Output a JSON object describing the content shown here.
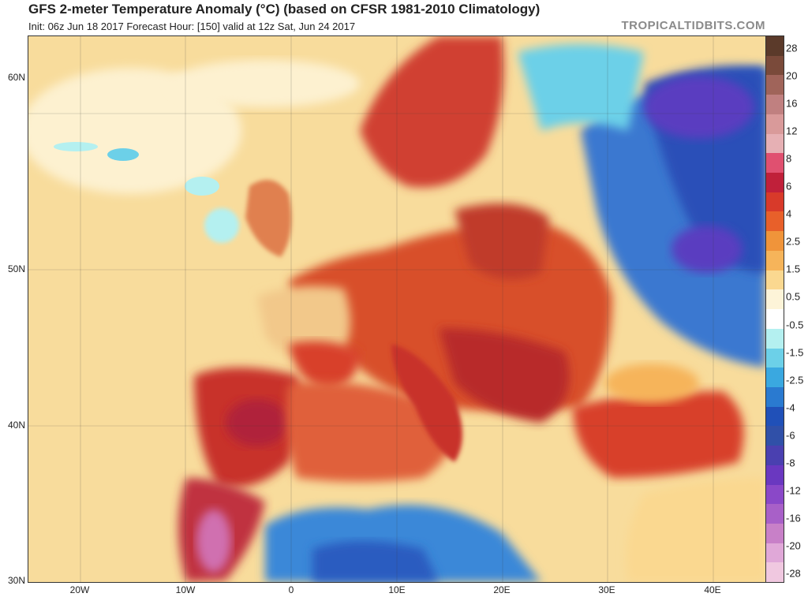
{
  "header": {
    "title": "GFS 2-meter Temperature Anomaly (°C) (based on CFSR 1981-2010 Climatology)",
    "subtitle": "Init: 06z Jun 18 2017   Forecast Hour: [150]   valid at 12z Sat, Jun 24 2017",
    "brand": "TROPICALTIDBITS.COM"
  },
  "axes": {
    "latitudes": [
      "60N",
      "50N",
      "40N",
      "30N"
    ],
    "longitudes": [
      "20W",
      "10W",
      "0",
      "10E",
      "20E",
      "30E",
      "40E"
    ]
  },
  "legend": {
    "labels": [
      "28",
      "20",
      "16",
      "12",
      "8",
      "6",
      "4",
      "2.5",
      "1.5",
      "0.5",
      "-0.5",
      "-1.5",
      "-2.5",
      "-4",
      "-6",
      "-8",
      "-12",
      "-16",
      "-20",
      "-28"
    ],
    "colors": [
      "#5b3a2a",
      "#7a4a3a",
      "#a0645a",
      "#c08080",
      "#d99a9a",
      "#e6b0b4",
      "#e05070",
      "#c0203a",
      "#d83a2a",
      "#e8602a",
      "#f0943a",
      "#f6b45a",
      "#fad890",
      "#fdf4d8",
      "#ffffff",
      "#b4f0f0",
      "#6cd0e8",
      "#3aa8e0",
      "#2a7ad0",
      "#2050b8",
      "#3050a8",
      "#4a40b0",
      "#6a38c0",
      "#8a48c8",
      "#a860c8",
      "#c880c8",
      "#e0a8d8",
      "#f0c8e0"
    ]
  },
  "colors": {
    "ocean_neutral": "#f8dc9c",
    "warm_anomaly": "#d8402a",
    "hot_anomaly": "#b02030",
    "cold_anomaly": "#2a5cc0",
    "very_cold_anomaly": "#5a3cc0"
  }
}
